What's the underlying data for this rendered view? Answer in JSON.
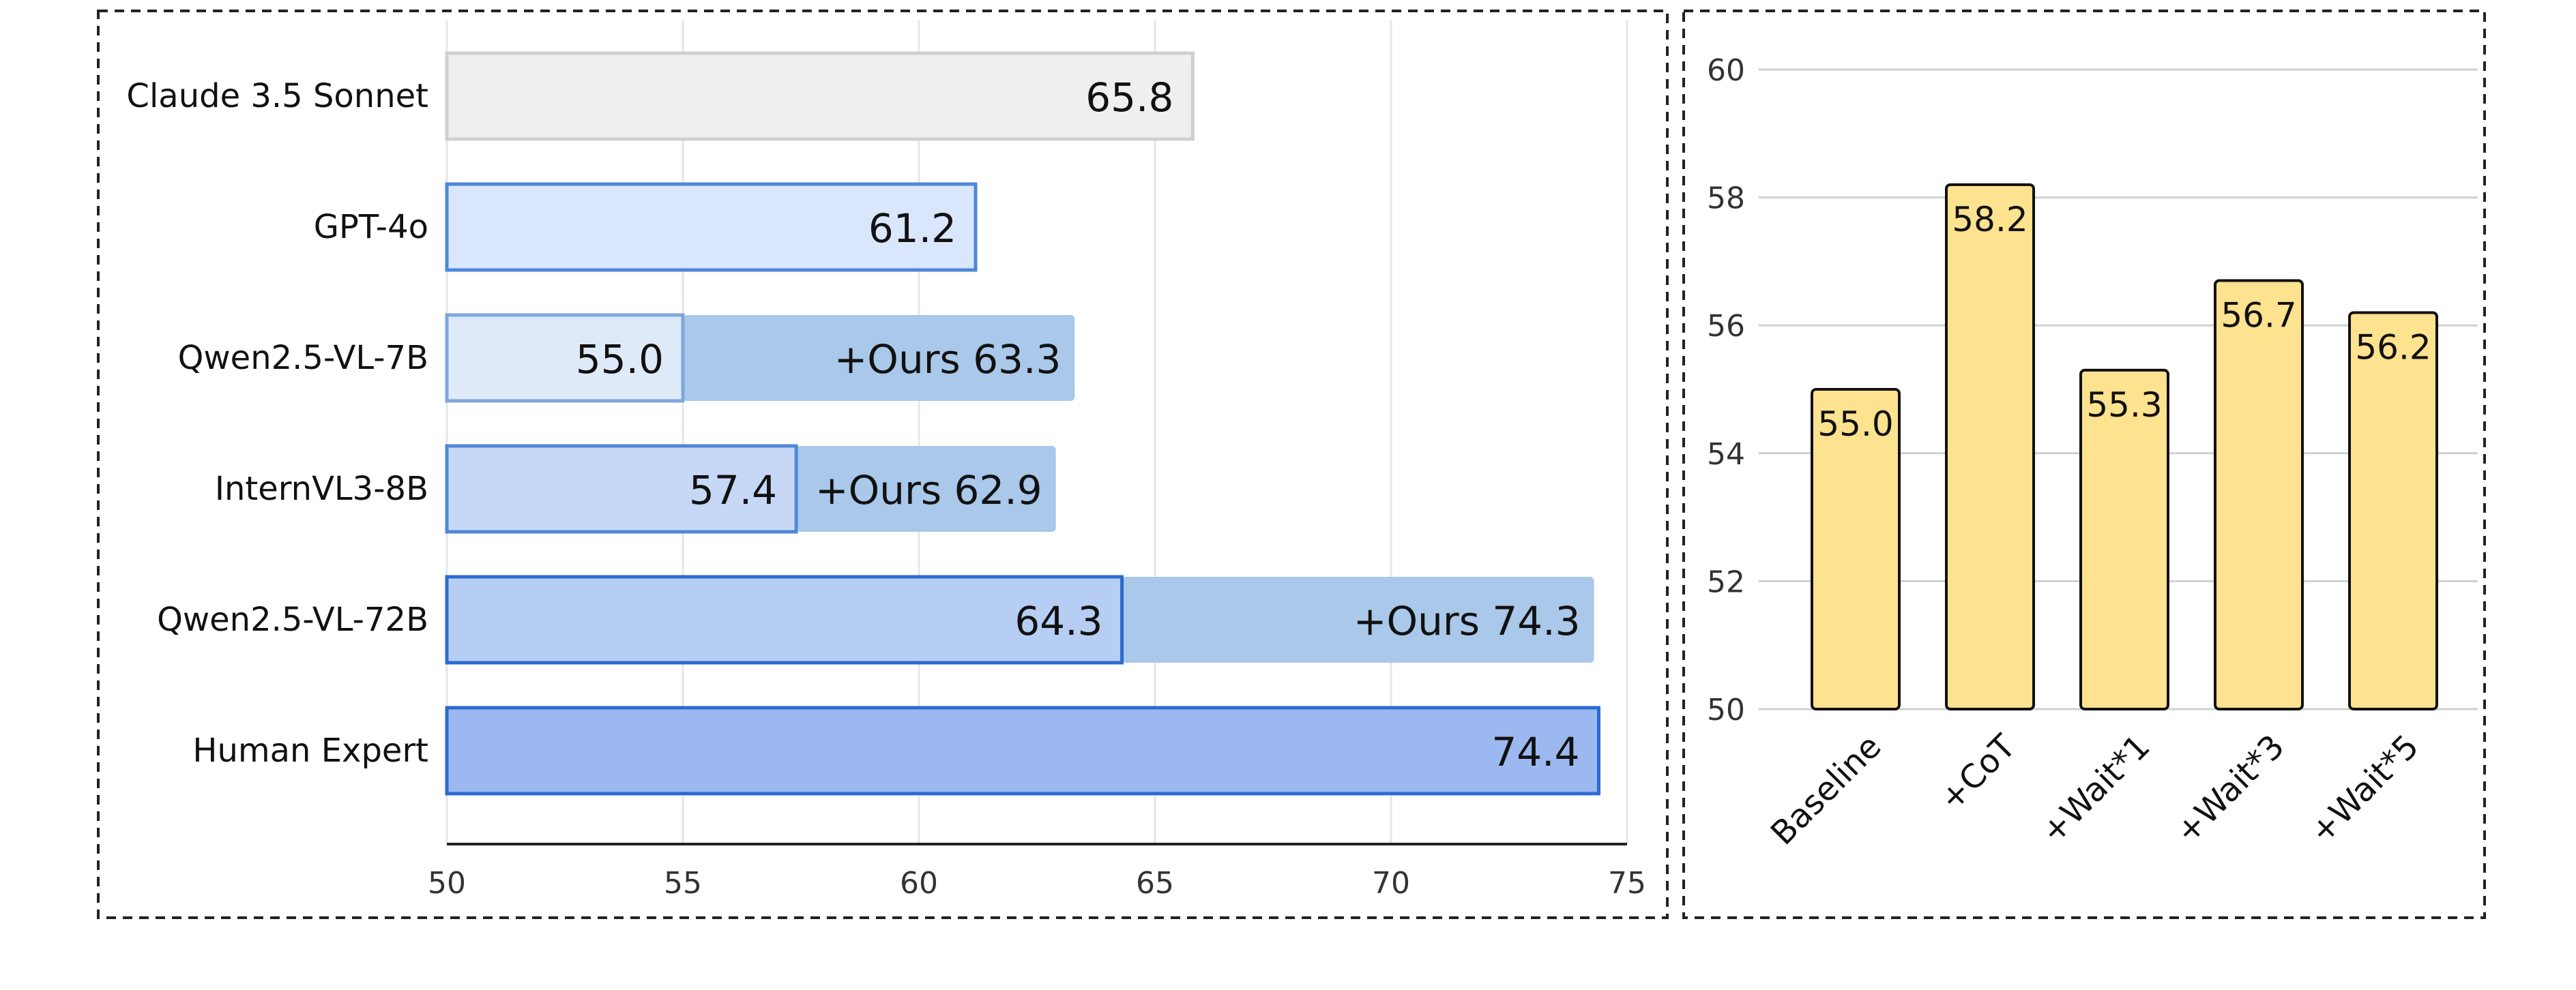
{
  "chart_data": [
    {
      "type": "bar",
      "orientation": "horizontal",
      "categories": [
        "Claude 3.5 Sonnet",
        "GPT-4o",
        "Qwen2.5-VL-7B",
        "InternVL3-8B",
        "Qwen2.5-VL-72B",
        "Human Expert"
      ],
      "series": [
        {
          "values": [
            65.8,
            61.2,
            55.0,
            57.4,
            64.3,
            74.4
          ]
        },
        {
          "values": [
            null,
            null,
            63.3,
            62.9,
            74.3,
            null
          ],
          "label_prefix": "+Ours "
        }
      ],
      "data_labels": [
        "65.8",
        "61.2",
        "55.0",
        "57.4",
        "64.3",
        "74.4"
      ],
      "extension_labels": [
        "",
        "",
        "+Ours 63.3",
        "+Ours 62.9",
        "+Ours 74.3",
        ""
      ],
      "xlim": [
        50,
        75
      ],
      "x_ticks": [
        "50",
        "55",
        "60",
        "65",
        "70",
        "75"
      ],
      "grid": true,
      "colors": {
        "base_fills": [
          "#efefef",
          "#d9e6fb",
          "#dfeaf8",
          "#c7d7f6",
          "#b6cdf4",
          "#9bb9f0"
        ],
        "base_strokes": [
          "#cfcfcf",
          "#4f86d8",
          "#7fa7dd",
          "#4f86d8",
          "#2c6bd0",
          "#2c6bd0"
        ],
        "extension_fill": "#a9c8ea"
      }
    },
    {
      "type": "bar",
      "categories": [
        "Baseline",
        "+CoT",
        "+Wait*1",
        "+Wait*3",
        "+Wait*5"
      ],
      "values": [
        55.0,
        58.2,
        55.3,
        56.7,
        56.2
      ],
      "data_labels": [
        "55.0",
        "58.2",
        "55.3",
        "56.7",
        "56.2"
      ],
      "ylim": [
        50,
        60
      ],
      "y_ticks": [
        "50",
        "52",
        "54",
        "56",
        "58",
        "60"
      ],
      "grid": true,
      "colors": {
        "bar_fill": "#fde28f",
        "bar_stroke": "#111111"
      }
    }
  ]
}
